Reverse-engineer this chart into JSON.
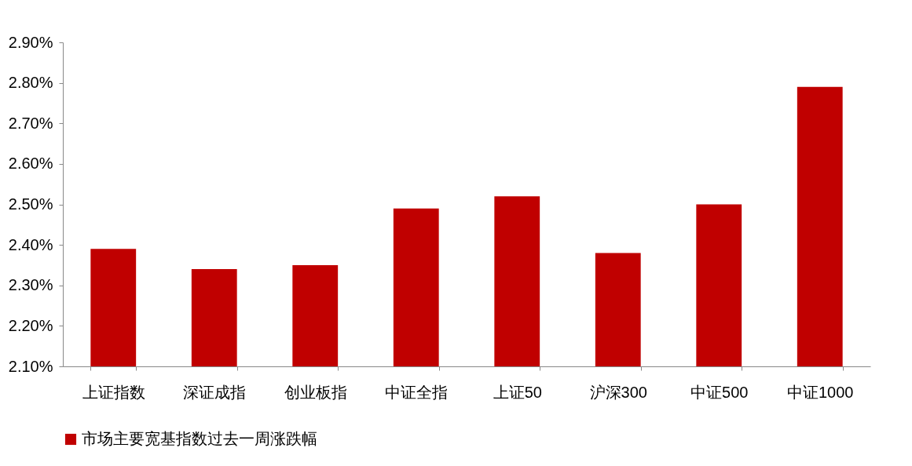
{
  "chart_data": {
    "type": "bar",
    "categories": [
      "上证指数",
      "深证成指",
      "创业板指",
      "中证全指",
      "上证50",
      "沪深300",
      "中证500",
      "中证1000"
    ],
    "series": [
      {
        "name": "市场主要宽基指数过去一周涨跌幅",
        "color": "#c00000",
        "values": [
          2.39,
          2.34,
          2.35,
          2.49,
          2.52,
          2.38,
          2.5,
          2.79
        ]
      }
    ],
    "ylim": [
      2.1,
      2.9
    ],
    "yticks": [
      {
        "value": 2.1,
        "label": "2.10%"
      },
      {
        "value": 2.2,
        "label": "2.20%"
      },
      {
        "value": 2.3,
        "label": "2.30%"
      },
      {
        "value": 2.4,
        "label": "2.40%"
      },
      {
        "value": 2.5,
        "label": "2.50%"
      },
      {
        "value": 2.6,
        "label": "2.60%"
      },
      {
        "value": 2.7,
        "label": "2.70%"
      },
      {
        "value": 2.8,
        "label": "2.80%"
      },
      {
        "value": 2.9,
        "label": "2.90%"
      }
    ],
    "grid": false,
    "legend": "bottom"
  }
}
